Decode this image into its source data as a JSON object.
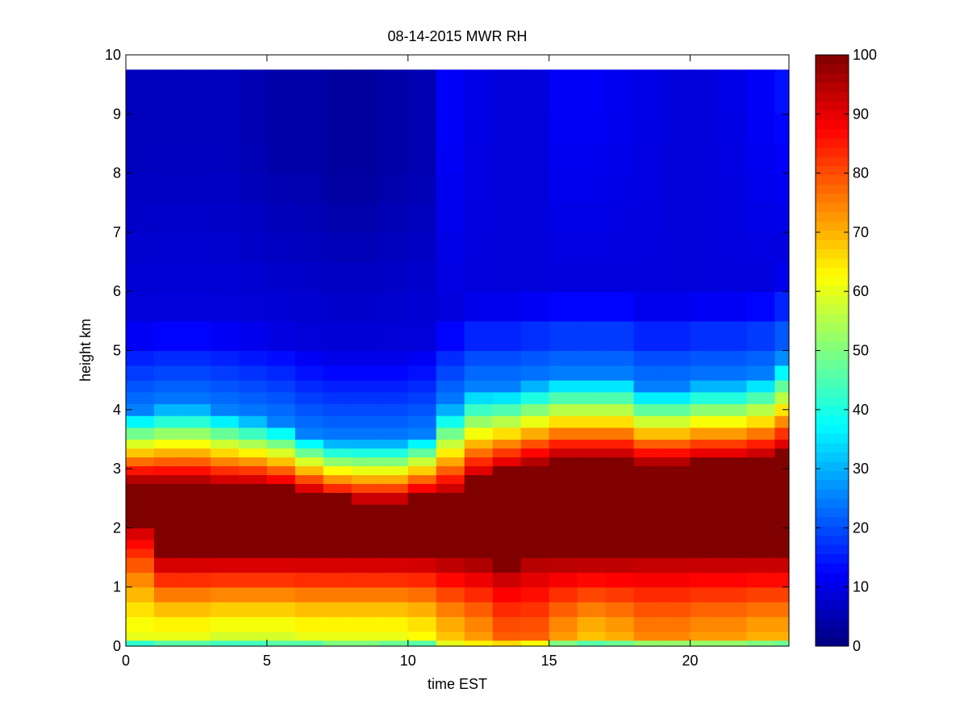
{
  "chart_data": {
    "type": "heatmap",
    "title": "08-14-2015 MWR RH",
    "xlabel": "time EST",
    "ylabel": "height km",
    "xlim": [
      0,
      23.5
    ],
    "ylim": [
      0,
      10
    ],
    "x_ticks": [
      0,
      5,
      10,
      15,
      20
    ],
    "y_ticks": [
      0,
      1,
      2,
      3,
      4,
      5,
      6,
      7,
      8,
      9,
      10
    ],
    "colorbar": {
      "min": 0,
      "max": 100,
      "ticks": [
        0,
        10,
        20,
        30,
        40,
        50,
        60,
        70,
        80,
        90,
        100
      ],
      "colormap": "jet"
    },
    "x_edges": [
      0,
      1,
      2,
      3,
      4,
      5,
      6,
      7,
      8,
      9,
      10,
      11,
      12,
      13,
      14,
      15,
      16,
      17,
      18,
      19,
      20,
      21,
      22,
      23,
      23.5
    ],
    "y_edges": [
      0,
      0.1,
      0.25,
      0.5,
      0.75,
      1.0,
      1.25,
      1.5,
      1.65,
      1.8,
      2.0,
      2.2,
      2.4,
      2.6,
      2.75,
      2.9,
      3.05,
      3.2,
      3.35,
      3.5,
      3.7,
      3.9,
      4.1,
      4.3,
      4.5,
      4.75,
      5.0,
      5.5,
      6.0,
      6.5,
      7.0,
      7.5,
      8.0,
      8.5,
      9.0,
      9.75
    ],
    "profiles": [
      {
        "lo": 60,
        "L": 2.1,
        "H": 2.8,
        "top": 4.0,
        "hiRH": 6,
        "bot": 42
      },
      {
        "lo": 60,
        "L": 1.5,
        "H": 2.8,
        "top": 4.1,
        "hiRH": 6,
        "bot": 46
      },
      {
        "lo": 60,
        "L": 1.5,
        "H": 2.8,
        "top": 4.1,
        "hiRH": 6,
        "bot": 46
      },
      {
        "lo": 58,
        "L": 1.5,
        "H": 2.75,
        "top": 4.0,
        "hiRH": 6,
        "bot": 44
      },
      {
        "lo": 58,
        "L": 1.5,
        "H": 2.75,
        "top": 3.9,
        "hiRH": 5,
        "bot": 44
      },
      {
        "lo": 58,
        "L": 1.5,
        "H": 2.7,
        "top": 3.8,
        "hiRH": 4,
        "bot": 46
      },
      {
        "lo": 60,
        "L": 1.5,
        "H": 2.6,
        "top": 3.6,
        "hiRH": 4,
        "bot": 46
      },
      {
        "lo": 60,
        "L": 1.5,
        "H": 2.5,
        "top": 3.5,
        "hiRH": 3,
        "bot": 50
      },
      {
        "lo": 60,
        "L": 1.5,
        "H": 2.45,
        "top": 3.5,
        "hiRH": 3,
        "bot": 50
      },
      {
        "lo": 60,
        "L": 1.5,
        "H": 2.45,
        "top": 3.5,
        "hiRH": 4,
        "bot": 48
      },
      {
        "lo": 62,
        "L": 1.5,
        "H": 2.55,
        "top": 3.6,
        "hiRH": 5,
        "bot": 46
      },
      {
        "lo": 68,
        "L": 1.45,
        "H": 2.6,
        "top": 4.1,
        "hiRH": 12,
        "bot": 60
      },
      {
        "lo": 72,
        "L": 1.4,
        "H": 2.85,
        "top": 4.4,
        "hiRH": 10,
        "bot": 64
      },
      {
        "lo": 78,
        "L": 1.3,
        "H": 3.0,
        "top": 4.4,
        "hiRH": 9,
        "bot": 66
      },
      {
        "lo": 78,
        "L": 1.45,
        "H": 3.1,
        "top": 4.5,
        "hiRH": 9,
        "bot": 62
      },
      {
        "lo": 72,
        "L": 1.45,
        "H": 3.2,
        "top": 4.6,
        "hiRH": 12,
        "bot": 50
      },
      {
        "lo": 68,
        "L": 1.45,
        "H": 3.2,
        "top": 4.6,
        "hiRH": 12,
        "bot": 46
      },
      {
        "lo": 70,
        "L": 1.45,
        "H": 3.2,
        "top": 4.6,
        "hiRH": 11,
        "bot": 48
      },
      {
        "lo": 74,
        "L": 1.5,
        "H": 3.1,
        "top": 4.4,
        "hiRH": 10,
        "bot": 52
      },
      {
        "lo": 74,
        "L": 1.5,
        "H": 3.1,
        "top": 4.4,
        "hiRH": 9,
        "bot": 52
      },
      {
        "lo": 72,
        "L": 1.5,
        "H": 3.15,
        "top": 4.5,
        "hiRH": 9,
        "bot": 52
      },
      {
        "lo": 72,
        "L": 1.5,
        "H": 3.15,
        "top": 4.5,
        "hiRH": 10,
        "bot": 52
      },
      {
        "lo": 70,
        "L": 1.5,
        "H": 3.2,
        "top": 4.6,
        "hiRH": 12,
        "bot": 50
      },
      {
        "lo": 70,
        "L": 1.5,
        "H": 3.3,
        "top": 4.9,
        "hiRH": 14,
        "bot": 48
      }
    ]
  }
}
